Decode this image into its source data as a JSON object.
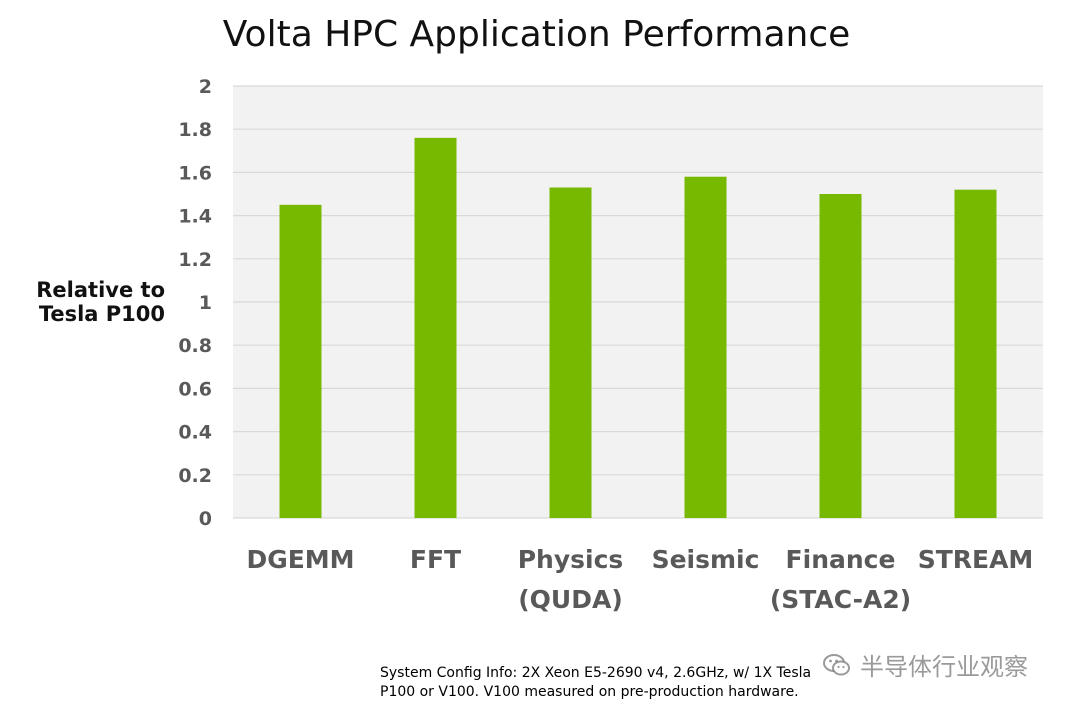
{
  "chart_data": {
    "type": "bar",
    "title": "Volta HPC Application Performance",
    "ylabel": "Relative to\nTesla P100",
    "xlabel": "",
    "categories": [
      [
        "DGEMM"
      ],
      [
        "FFT"
      ],
      [
        "Physics",
        "(QUDA)"
      ],
      [
        "Seismic"
      ],
      [
        "Finance",
        "(STAC-A2)"
      ],
      [
        "STREAM"
      ]
    ],
    "values": [
      1.45,
      1.76,
      1.53,
      1.58,
      1.5,
      1.52
    ],
    "ylim": [
      0,
      2
    ],
    "yticks": [
      "0",
      "0.2",
      "0.4",
      "0.6",
      "0.8",
      "1",
      "1.2",
      "1.4",
      "1.6",
      "1.8",
      "2"
    ],
    "grid": true,
    "legend": "none",
    "colors": {
      "bar": "#76B900",
      "plot_background": "#F2F2F2",
      "grid": "#D9D9D9",
      "tick_label": "#595959"
    }
  },
  "footnote": "System Config Info: 2X Xeon E5-2690 v4, 2.6GHz, w/ 1X Tesla\nP100 or V100. V100 measured on pre-production hardware.",
  "watermark": {
    "text": "半导体行业观察",
    "icon": "wechat-icon"
  }
}
